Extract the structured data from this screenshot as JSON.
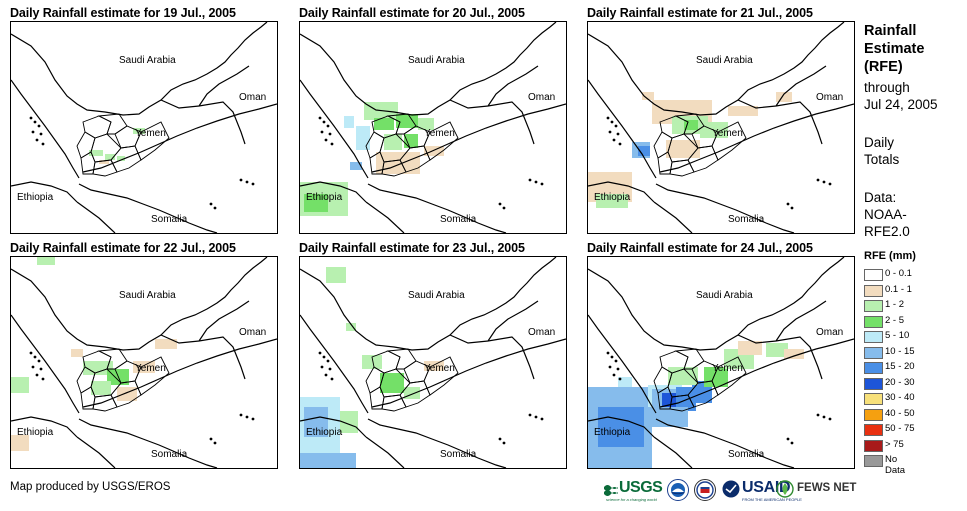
{
  "panels": [
    {
      "title": "Daily Rainfall estimate for 19 Jul., 2005",
      "day": 19
    },
    {
      "title": "Daily Rainfall estimate for 20 Jul., 2005",
      "day": 20
    },
    {
      "title": "Daily Rainfall estimate for 21 Jul., 2005",
      "day": 21
    },
    {
      "title": "Daily Rainfall estimate for 22 Jul., 2005",
      "day": 22
    },
    {
      "title": "Daily Rainfall estimate for 23 Jul., 2005",
      "day": 23
    },
    {
      "title": "Daily Rainfall estimate for 24 Jul., 2005",
      "day": 24
    }
  ],
  "map_labels": {
    "saudi_arabia": "Saudi Arabia",
    "oman": "Oman",
    "yemen": "Yemen",
    "ethiopia": "Ethiopia",
    "somalia": "Somalia"
  },
  "side": {
    "title": "Rainfall Estimate (RFE)",
    "through": "through",
    "date": "Jul 24, 2005",
    "daily_1": "Daily",
    "daily_2": "Totals",
    "data_1": "Data:",
    "data_2": "NOAA-",
    "data_3": "RFE2.0"
  },
  "legend": {
    "title": "RFE (mm)",
    "items": [
      {
        "label": "0 - 0.1",
        "color": "#ffffff"
      },
      {
        "label": "0.1 - 1",
        "color": "#f2dcbf"
      },
      {
        "label": "1 - 2",
        "color": "#b8f0b0"
      },
      {
        "label": "2 - 5",
        "color": "#74e068"
      },
      {
        "label": "5 - 10",
        "color": "#bdeaf7"
      },
      {
        "label": "10 - 15",
        "color": "#86bcec"
      },
      {
        "label": "15 - 20",
        "color": "#4a8fe6"
      },
      {
        "label": "20 - 30",
        "color": "#1d55d8"
      },
      {
        "label": "30 - 40",
        "color": "#f7e07a"
      },
      {
        "label": "40 - 50",
        "color": "#f5a010"
      },
      {
        "label": "50 - 75",
        "color": "#e83010"
      },
      {
        "label": "> 75",
        "color": "#a81a1a"
      },
      {
        "label": "No Data",
        "color": "#999999"
      }
    ]
  },
  "footer": {
    "credit": "Map produced by USGS/EROS",
    "logo_usgs": "USGS",
    "logo_usgs_tag": "science for a changing world",
    "logo_usaid": "USAID",
    "logo_usaid_tag": "FROM THE AMERICAN PEOPLE",
    "logo_fews": "FEWS NET"
  }
}
